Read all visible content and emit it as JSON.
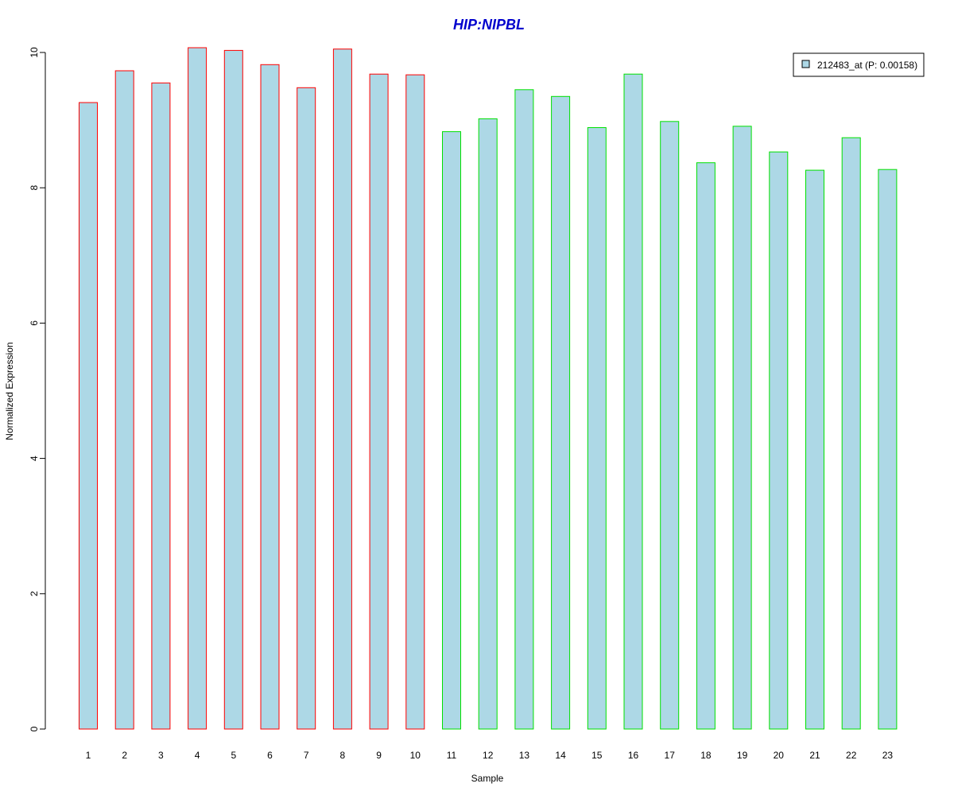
{
  "chart_data": {
    "type": "bar",
    "title": "HIP:NIPBL",
    "xlabel": "Sample",
    "ylabel": "Normalized Expression",
    "categories": [
      "1",
      "2",
      "3",
      "4",
      "5",
      "6",
      "7",
      "8",
      "9",
      "10",
      "11",
      "12",
      "13",
      "14",
      "15",
      "16",
      "17",
      "18",
      "19",
      "20",
      "21",
      "22",
      "23"
    ],
    "series": [
      {
        "name": "212483_at (P: 0.00158)",
        "values": [
          9.26,
          9.73,
          9.55,
          10.07,
          10.03,
          9.82,
          9.48,
          10.05,
          9.68,
          9.67,
          8.83,
          9.02,
          9.45,
          9.35,
          8.89,
          9.68,
          8.98,
          8.37,
          8.91,
          8.53,
          8.26,
          8.74,
          8.27
        ]
      }
    ],
    "groups": [
      {
        "samples": [
          1,
          2,
          3,
          4,
          5,
          6,
          7,
          8,
          9,
          10
        ],
        "border_color": "#ff0000"
      },
      {
        "samples": [
          11,
          12,
          13,
          14,
          15,
          16,
          17,
          18,
          19,
          20,
          21,
          22,
          23
        ],
        "border_color": "#00e000"
      }
    ],
    "ylim": [
      0,
      10
    ],
    "yticks": [
      "0",
      "2",
      "4",
      "6",
      "8",
      "10"
    ],
    "grid": false,
    "legend_position": "top-right",
    "colors": {
      "bar_fill": "#add8e6",
      "title": "#0000cd",
      "axis": "#000000"
    }
  }
}
